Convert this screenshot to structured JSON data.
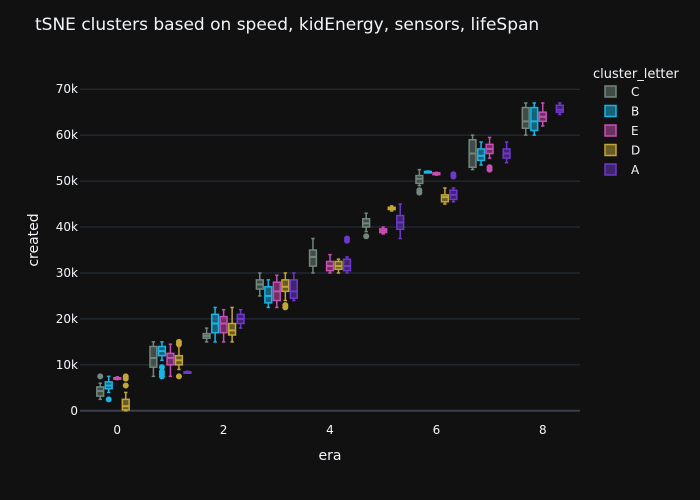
{
  "chart_data": {
    "type": "box",
    "title": "tSNE clusters based on speed, kidEnergy, sensors, lifeSpan",
    "xlabel": "era",
    "ylabel": "created",
    "xlim": [
      -0.7,
      8.7
    ],
    "ylim": [
      -2000,
      72000
    ],
    "x_ticks": [
      0,
      2,
      4,
      6,
      8
    ],
    "x_tick_labels": [
      "0",
      "2",
      "4",
      "6",
      "8"
    ],
    "y_ticks": [
      0,
      10000,
      20000,
      30000,
      40000,
      50000,
      60000,
      70000
    ],
    "y_tick_labels": [
      "0",
      "10k",
      "20k",
      "30k",
      "40k",
      "50k",
      "60k",
      "70k"
    ],
    "legend_title": "cluster_letter",
    "legend_position": "top-right",
    "grid": true,
    "series": [
      {
        "name": "C",
        "color": "#72877e",
        "boxes": [
          {
            "era": 0,
            "min": 2500,
            "q1": 3200,
            "median": 4300,
            "q3": 5200,
            "max": 6000,
            "outliers": [
              7500
            ]
          },
          {
            "era": 1,
            "min": 7500,
            "q1": 9500,
            "median": 11500,
            "q3": 14000,
            "max": 15000,
            "outliers": []
          },
          {
            "era": 2,
            "min": 15000,
            "q1": 15800,
            "median": 16300,
            "q3": 16800,
            "max": 18000,
            "outliers": []
          },
          {
            "era": 3,
            "min": 25000,
            "q1": 26500,
            "median": 27500,
            "q3": 28500,
            "max": 30000,
            "outliers": []
          },
          {
            "era": 4,
            "min": 30000,
            "q1": 31500,
            "median": 33500,
            "q3": 35000,
            "max": 37500,
            "outliers": []
          },
          {
            "era": 5,
            "min": 39000,
            "q1": 40000,
            "median": 40800,
            "q3": 41800,
            "max": 43000,
            "outliers": [
              38000
            ]
          },
          {
            "era": 6,
            "min": 49000,
            "q1": 49500,
            "median": 50500,
            "q3": 51200,
            "max": 52500,
            "outliers": [
              48000,
              47500
            ]
          },
          {
            "era": 7,
            "min": 52500,
            "q1": 53000,
            "median": 56000,
            "q3": 59000,
            "max": 60000,
            "outliers": []
          },
          {
            "era": 8,
            "min": 60000,
            "q1": 61500,
            "median": 63000,
            "q3": 66000,
            "max": 67000,
            "outliers": []
          }
        ]
      },
      {
        "name": "B",
        "color": "#19b5e6",
        "boxes": [
          {
            "era": 0,
            "min": 4000,
            "q1": 4800,
            "median": 5500,
            "q3": 6300,
            "max": 7500,
            "outliers": [
              2500
            ]
          },
          {
            "era": 1,
            "min": 11000,
            "q1": 12000,
            "median": 13000,
            "q3": 14000,
            "max": 15000,
            "outliers": [
              9500,
              8500,
              8000,
              7500
            ]
          },
          {
            "era": 2,
            "min": 15000,
            "q1": 17000,
            "median": 19000,
            "q3": 21000,
            "max": 22500,
            "outliers": []
          },
          {
            "era": 3,
            "min": 22500,
            "q1": 23500,
            "median": 25000,
            "q3": 27000,
            "max": 28500,
            "outliers": []
          },
          {
            "era": 6,
            "min": 51800,
            "q1": 51900,
            "median": 52000,
            "q3": 52100,
            "max": 52200,
            "outliers": []
          },
          {
            "era": 7,
            "min": 53500,
            "q1": 54500,
            "median": 55500,
            "q3": 57000,
            "max": 58500,
            "outliers": []
          },
          {
            "era": 8,
            "min": 60000,
            "q1": 61000,
            "median": 63000,
            "q3": 66000,
            "max": 67000,
            "outliers": []
          }
        ]
      },
      {
        "name": "E",
        "color": "#c84fb4",
        "boxes": [
          {
            "era": 0,
            "min": 6800,
            "q1": 7000,
            "median": 7100,
            "q3": 7200,
            "max": 7400,
            "outliers": []
          },
          {
            "era": 1,
            "min": 7500,
            "q1": 10000,
            "median": 11500,
            "q3": 12500,
            "max": 14500,
            "outliers": []
          },
          {
            "era": 2,
            "min": 15000,
            "q1": 17000,
            "median": 19000,
            "q3": 20500,
            "max": 22000,
            "outliers": []
          },
          {
            "era": 3,
            "min": 22500,
            "q1": 24000,
            "median": 26000,
            "q3": 28000,
            "max": 29500,
            "outliers": []
          },
          {
            "era": 4,
            "min": 30000,
            "q1": 30500,
            "median": 31500,
            "q3": 32500,
            "max": 34000,
            "outliers": []
          },
          {
            "era": 5,
            "min": 38500,
            "q1": 38800,
            "median": 39200,
            "q3": 39600,
            "max": 40000,
            "outliers": []
          },
          {
            "era": 6,
            "min": 51300,
            "q1": 51400,
            "median": 51600,
            "q3": 51800,
            "max": 51900,
            "outliers": []
          },
          {
            "era": 7,
            "min": 55000,
            "q1": 56000,
            "median": 57000,
            "q3": 58000,
            "max": 59500,
            "outliers": [
              53000,
              52500
            ]
          },
          {
            "era": 8,
            "min": 62000,
            "q1": 63000,
            "median": 64000,
            "q3": 65000,
            "max": 67000,
            "outliers": []
          }
        ]
      },
      {
        "name": "D",
        "color": "#c2a637",
        "boxes": [
          {
            "era": 0,
            "min": 0,
            "q1": 200,
            "median": 1000,
            "q3": 2500,
            "max": 4000,
            "outliers": [
              5500,
              7000,
              7500
            ]
          },
          {
            "era": 1,
            "min": 9000,
            "q1": 10000,
            "median": 11000,
            "q3": 12000,
            "max": 14000,
            "outliers": [
              7500,
              14500,
              15000
            ]
          },
          {
            "era": 2,
            "min": 15000,
            "q1": 16500,
            "median": 17500,
            "q3": 19000,
            "max": 22500,
            "outliers": []
          },
          {
            "era": 3,
            "min": 24000,
            "q1": 26000,
            "median": 27000,
            "q3": 28500,
            "max": 30000,
            "outliers": [
              23000,
              22500
            ]
          },
          {
            "era": 4,
            "min": 30000,
            "q1": 30800,
            "median": 31500,
            "q3": 32500,
            "max": 33000,
            "outliers": []
          },
          {
            "era": 5,
            "min": 43500,
            "q1": 43800,
            "median": 44000,
            "q3": 44300,
            "max": 44600,
            "outliers": []
          },
          {
            "era": 6,
            "min": 45000,
            "q1": 45500,
            "median": 46500,
            "q3": 47000,
            "max": 48500,
            "outliers": []
          }
        ]
      },
      {
        "name": "A",
        "color": "#6e38cc",
        "boxes": [
          {
            "era": 1,
            "min": 8200,
            "q1": 8300,
            "median": 8400,
            "q3": 8500,
            "max": 8600,
            "outliers": []
          },
          {
            "era": 2,
            "min": 18000,
            "q1": 19000,
            "median": 20000,
            "q3": 21000,
            "max": 22000,
            "outliers": []
          },
          {
            "era": 3,
            "min": 24000,
            "q1": 24500,
            "median": 26000,
            "q3": 28500,
            "max": 30000,
            "outliers": []
          },
          {
            "era": 4,
            "min": 30000,
            "q1": 30500,
            "median": 31500,
            "q3": 33000,
            "max": 33500,
            "outliers": [
              37000,
              37500
            ]
          },
          {
            "era": 5,
            "min": 37500,
            "q1": 39500,
            "median": 41000,
            "q3": 42500,
            "max": 45000,
            "outliers": []
          },
          {
            "era": 6,
            "min": 45500,
            "q1": 46000,
            "median": 47000,
            "q3": 48000,
            "max": 48500,
            "outliers": [
              51000,
              51500
            ]
          },
          {
            "era": 7,
            "min": 54000,
            "q1": 55000,
            "median": 56000,
            "q3": 57000,
            "max": 58500,
            "outliers": []
          },
          {
            "era": 8,
            "min": 64500,
            "q1": 65000,
            "median": 65500,
            "q3": 66500,
            "max": 67000,
            "outliers": []
          }
        ]
      }
    ]
  }
}
